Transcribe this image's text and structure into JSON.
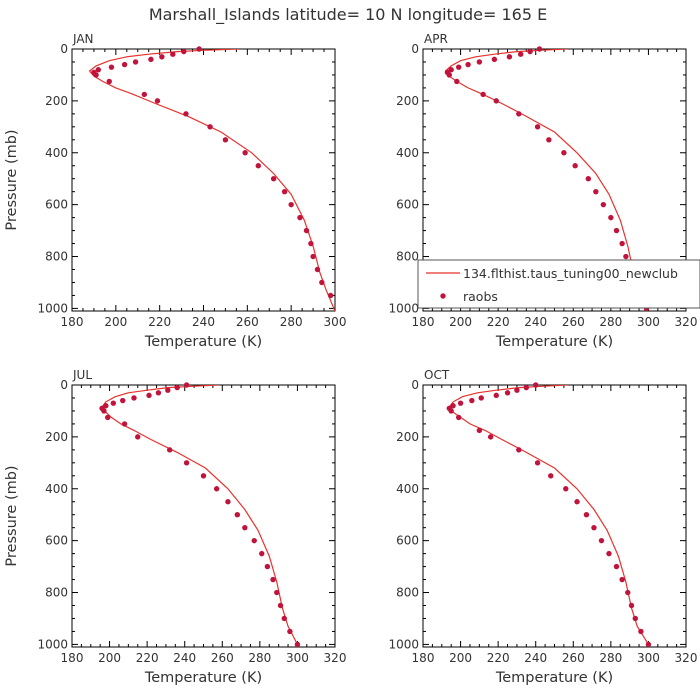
{
  "figure": {
    "title": "Marshall_Islands  latitude= 10 N longitude= 165 E"
  },
  "legend": {
    "model_label": "134.flthist.taus_tuning00_newclub",
    "obs_label": "raobs"
  },
  "colors": {
    "model": "#e8322c",
    "obs": "#c0143c",
    "axis": "#000000",
    "text": "#333333"
  },
  "chart_data": [
    {
      "type": "line",
      "panel": "JAN",
      "title": "JAN",
      "xlabel": "Temperature (K)",
      "ylabel": "Pressure (mb)",
      "xlim": [
        180,
        300
      ],
      "xticks": [
        180,
        200,
        220,
        240,
        260,
        280,
        300
      ],
      "ylim": [
        1010,
        0
      ],
      "yticks": [
        0,
        200,
        400,
        600,
        800,
        1000
      ],
      "series": [
        {
          "name": "134.flthist.taus_tuning00_newclub",
          "style": "line",
          "x": [
            256,
            240,
            228,
            215,
            205,
            197,
            191,
            188,
            190,
            194,
            200,
            208,
            218,
            233,
            248,
            262,
            272,
            280,
            286,
            290,
            293,
            296,
            300
          ],
          "y": [
            0,
            5,
            10,
            20,
            30,
            45,
            65,
            85,
            105,
            125,
            150,
            175,
            210,
            260,
            320,
            400,
            480,
            560,
            660,
            760,
            860,
            930,
            1010
          ]
        },
        {
          "name": "raobs",
          "style": "markers",
          "x": [
            238,
            231,
            226,
            221,
            216,
            209,
            204,
            198,
            192,
            190,
            191,
            197,
            213,
            219,
            232,
            243,
            250,
            259,
            265,
            272,
            277,
            280,
            284,
            287,
            289,
            290,
            292,
            294,
            298
          ],
          "y": [
            0,
            10,
            20,
            30,
            40,
            50,
            60,
            70,
            80,
            90,
            100,
            125,
            175,
            200,
            250,
            300,
            350,
            400,
            450,
            500,
            550,
            600,
            650,
            700,
            750,
            800,
            850,
            900,
            950
          ]
        }
      ]
    },
    {
      "type": "line",
      "panel": "APR",
      "title": "APR",
      "xlabel": "Temperature (K)",
      "ylabel": "",
      "xlim": [
        180,
        320
      ],
      "xticks": [
        180,
        200,
        220,
        240,
        260,
        280,
        300,
        320
      ],
      "ylim": [
        1010,
        0
      ],
      "yticks": [
        0,
        200,
        400,
        600,
        800,
        1000
      ],
      "series": [
        {
          "name": "134.flthist.taus_tuning00_newclub",
          "style": "line",
          "x": [
            257,
            242,
            230,
            218,
            208,
            200,
            195,
            192,
            194,
            198,
            204,
            212,
            222,
            235,
            250,
            262,
            272,
            279,
            285,
            289,
            292,
            295,
            300
          ],
          "y": [
            0,
            5,
            10,
            20,
            30,
            45,
            65,
            85,
            105,
            125,
            150,
            175,
            210,
            260,
            320,
            400,
            480,
            560,
            660,
            760,
            860,
            930,
            1000
          ]
        },
        {
          "name": "raobs",
          "style": "markers",
          "x": [
            242,
            237,
            232,
            226,
            218,
            210,
            204,
            199,
            195,
            193,
            194,
            198,
            212,
            219,
            231,
            241,
            247,
            255,
            261,
            268,
            272,
            276,
            280,
            283,
            286,
            288,
            290,
            292,
            296,
            299
          ],
          "y": [
            0,
            10,
            20,
            30,
            40,
            50,
            60,
            70,
            80,
            90,
            100,
            125,
            175,
            200,
            250,
            300,
            350,
            400,
            450,
            500,
            550,
            600,
            650,
            700,
            750,
            800,
            850,
            900,
            950,
            1000
          ]
        }
      ]
    },
    {
      "type": "line",
      "panel": "JUL",
      "title": "JUL",
      "xlabel": "Temperature (K)",
      "ylabel": "Pressure (mb)",
      "xlim": [
        180,
        320
      ],
      "xticks": [
        180,
        200,
        220,
        240,
        260,
        280,
        300,
        320
      ],
      "ylim": [
        1010,
        0
      ],
      "yticks": [
        0,
        200,
        400,
        600,
        800,
        1000
      ],
      "series": [
        {
          "name": "134.flthist.taus_tuning00_newclub",
          "style": "line",
          "x": [
            258,
            244,
            231,
            220,
            210,
            203,
            198,
            196,
            198,
            201,
            206,
            213,
            222,
            236,
            251,
            263,
            272,
            279,
            285,
            289,
            292,
            295,
            300
          ],
          "y": [
            0,
            5,
            10,
            20,
            30,
            45,
            65,
            85,
            105,
            125,
            150,
            175,
            210,
            260,
            320,
            400,
            480,
            560,
            660,
            760,
            860,
            930,
            1000
          ]
        },
        {
          "name": "raobs",
          "style": "markers",
          "x": [
            241,
            236,
            231,
            226,
            221,
            213,
            207,
            202,
            198,
            196,
            197,
            199,
            208,
            215,
            232,
            241,
            250,
            257,
            263,
            268,
            272,
            277,
            281,
            284,
            287,
            289,
            291,
            293,
            296,
            300
          ],
          "y": [
            0,
            10,
            20,
            30,
            40,
            50,
            60,
            70,
            80,
            90,
            100,
            125,
            150,
            200,
            250,
            300,
            350,
            400,
            450,
            500,
            550,
            600,
            650,
            700,
            750,
            800,
            850,
            900,
            950,
            1000
          ]
        }
      ]
    },
    {
      "type": "line",
      "panel": "OCT",
      "title": "OCT",
      "xlabel": "Temperature (K)",
      "ylabel": "",
      "xlim": [
        180,
        320
      ],
      "xticks": [
        180,
        200,
        220,
        240,
        260,
        280,
        300,
        320
      ],
      "ylim": [
        1010,
        0
      ],
      "yticks": [
        0,
        200,
        400,
        600,
        800,
        1000
      ],
      "series": [
        {
          "name": "134.flthist.taus_tuning00_newclub",
          "style": "line",
          "x": [
            257,
            243,
            231,
            219,
            209,
            201,
            196,
            194,
            196,
            200,
            205,
            213,
            222,
            235,
            250,
            262,
            271,
            278,
            284,
            288,
            291,
            294,
            300
          ],
          "y": [
            0,
            5,
            10,
            20,
            30,
            45,
            65,
            85,
            105,
            125,
            150,
            175,
            210,
            260,
            320,
            400,
            480,
            560,
            660,
            760,
            860,
            930,
            1000
          ]
        },
        {
          "name": "raobs",
          "style": "markers",
          "x": [
            240,
            235,
            230,
            225,
            219,
            211,
            206,
            200,
            196,
            194,
            195,
            199,
            210,
            216,
            231,
            241,
            248,
            256,
            262,
            267,
            271,
            275,
            279,
            283,
            286,
            289,
            291,
            293,
            296,
            300
          ],
          "y": [
            0,
            10,
            20,
            30,
            40,
            50,
            60,
            70,
            80,
            90,
            100,
            125,
            175,
            200,
            250,
            300,
            350,
            400,
            450,
            500,
            550,
            600,
            650,
            700,
            750,
            800,
            850,
            900,
            950,
            1000
          ]
        }
      ]
    }
  ]
}
